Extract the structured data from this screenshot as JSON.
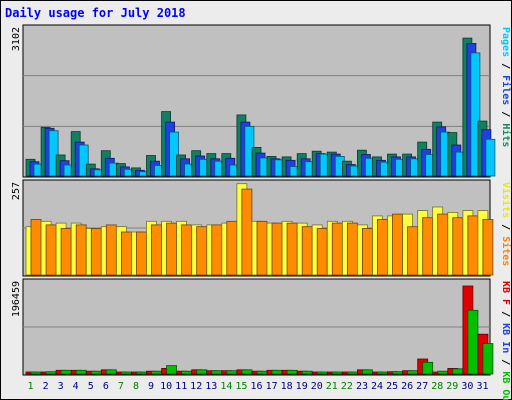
{
  "title": "Daily usage for July 2018",
  "chart_data": [
    {
      "type": "bar",
      "panel": "top",
      "ymax_label": "3102",
      "ylim": [
        0,
        3102
      ],
      "legend_right": [
        {
          "text": "Pages",
          "color": "#00c8ff"
        },
        {
          "text": "Files",
          "color": "#2040e0"
        },
        {
          "text": "Hits",
          "color": "#1a8a5a"
        }
      ],
      "categories": [
        "1",
        "2",
        "3",
        "4",
        "5",
        "6",
        "7",
        "8",
        "9",
        "10",
        "11",
        "12",
        "13",
        "14",
        "15",
        "16",
        "17",
        "18",
        "19",
        "20",
        "21",
        "22",
        "23",
        "24",
        "25",
        "26",
        "27",
        "28",
        "29",
        "30",
        "31"
      ],
      "series": [
        {
          "name": "Hits",
          "color": "#128060",
          "values": [
            350,
            1020,
            440,
            930,
            250,
            530,
            260,
            170,
            430,
            1350,
            440,
            530,
            470,
            470,
            1280,
            600,
            410,
            400,
            470,
            520,
            500,
            310,
            540,
            400,
            460,
            460,
            710,
            1130,
            910,
            2890,
            1150
          ]
        },
        {
          "name": "Files",
          "color": "#2040e0",
          "values": [
            300,
            1000,
            320,
            710,
            150,
            370,
            190,
            120,
            310,
            1130,
            360,
            420,
            360,
            370,
            1130,
            480,
            360,
            330,
            360,
            470,
            460,
            240,
            450,
            330,
            400,
            400,
            560,
            1030,
            650,
            2780,
            970
          ]
        },
        {
          "name": "Pages",
          "color": "#00c8ff",
          "values": [
            250,
            950,
            230,
            650,
            130,
            270,
            140,
            90,
            220,
            920,
            250,
            350,
            310,
            230,
            1040,
            380,
            340,
            200,
            300,
            460,
            410,
            210,
            370,
            290,
            350,
            360,
            450,
            920,
            500,
            2580,
            770
          ]
        }
      ]
    },
    {
      "type": "bar",
      "panel": "middle",
      "ymax_label": "257",
      "ylim": [
        0,
        257
      ],
      "legend_right": [
        {
          "text": "Visits",
          "color": "#e8e800"
        },
        {
          "text": "Sites",
          "color": "#ff8000"
        }
      ],
      "categories": [
        "1",
        "2",
        "3",
        "4",
        "5",
        "6",
        "7",
        "8",
        "9",
        "10",
        "11",
        "12",
        "13",
        "14",
        "15",
        "16",
        "17",
        "18",
        "19",
        "20",
        "21",
        "22",
        "23",
        "24",
        "25",
        "26",
        "27",
        "28",
        "29",
        "30",
        "31"
      ],
      "series": [
        {
          "name": "Visits",
          "color": "#ffff40",
          "values": [
            135,
            150,
            145,
            145,
            130,
            135,
            135,
            120,
            150,
            150,
            150,
            140,
            140,
            145,
            255,
            150,
            145,
            150,
            145,
            140,
            150,
            150,
            140,
            165,
            165,
            170,
            180,
            190,
            175,
            180,
            180
          ]
        },
        {
          "name": "Sites",
          "color": "#ff8c00",
          "values": [
            155,
            140,
            130,
            140,
            130,
            140,
            120,
            120,
            140,
            145,
            140,
            135,
            140,
            150,
            240,
            150,
            145,
            145,
            135,
            130,
            145,
            145,
            130,
            155,
            170,
            135,
            160,
            170,
            160,
            165,
            155
          ]
        }
      ]
    },
    {
      "type": "bar",
      "panel": "bottom",
      "ymax_label": "196459",
      "ylim": [
        0,
        196459
      ],
      "legend_right": [
        {
          "text": "KB F",
          "color": "#e00000"
        },
        {
          "text": "KB In",
          "color": "#2040e0"
        },
        {
          "text": "KB Out",
          "color": "#00c000"
        }
      ],
      "categories": [
        "1",
        "2",
        "3",
        "4",
        "5",
        "6",
        "7",
        "8",
        "9",
        "10",
        "11",
        "12",
        "13",
        "14",
        "15",
        "16",
        "17",
        "18",
        "19",
        "20",
        "21",
        "22",
        "23",
        "24",
        "25",
        "26",
        "27",
        "28",
        "29",
        "30",
        "31"
      ],
      "series": [
        {
          "name": "KB F",
          "color": "#e00000",
          "values": [
            3000,
            4000,
            8000,
            8000,
            6000,
            9000,
            4000,
            3000,
            6000,
            12000,
            6000,
            9000,
            7000,
            7000,
            9000,
            6000,
            8000,
            8000,
            6000,
            4000,
            4000,
            3000,
            9000,
            4000,
            5000,
            7000,
            32000,
            4000,
            12000,
            188000,
            85000
          ]
        },
        {
          "name": "KB Out",
          "color": "#00c000",
          "values": [
            3000,
            5000,
            8000,
            8000,
            6000,
            9000,
            3000,
            3000,
            6000,
            18000,
            6000,
            9000,
            7000,
            7000,
            9000,
            6000,
            8000,
            8000,
            6000,
            4000,
            4000,
            3000,
            9000,
            4000,
            5000,
            7000,
            25000,
            6000,
            11000,
            136000,
            65000
          ]
        }
      ],
      "x_label_colors": {
        "weekday": "#000080",
        "weekend": "#008000",
        "weekend_days": [
          "1",
          "7",
          "8",
          "14",
          "15",
          "21",
          "22",
          "28",
          "29"
        ]
      }
    }
  ]
}
